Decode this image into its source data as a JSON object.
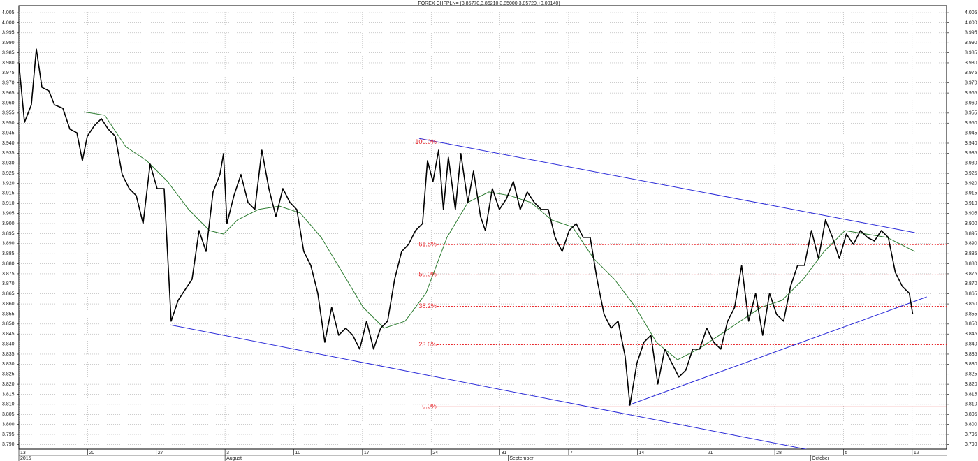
{
  "chart_data": {
    "type": "line",
    "title": "FOREX CHFPLN= (3.85770,3.86210,3.85000,3.85720,+0.00140)",
    "xlim": [
      0,
      67.5
    ],
    "ylim": [
      3.7877,
      4.0085
    ],
    "grid": true,
    "xticks": [
      {
        "value": 0,
        "label": "13"
      },
      {
        "value": 5,
        "label": "20"
      },
      {
        "value": 10,
        "label": "27"
      },
      {
        "value": 15,
        "label": "3"
      },
      {
        "value": 20,
        "label": "10"
      },
      {
        "value": 25,
        "label": "17"
      },
      {
        "value": 30,
        "label": "24"
      },
      {
        "value": 35,
        "label": "31"
      },
      {
        "value": 40,
        "label": "7"
      },
      {
        "value": 45,
        "label": "14"
      },
      {
        "value": 50,
        "label": "21"
      },
      {
        "value": 55,
        "label": "28"
      },
      {
        "value": 60,
        "label": "5"
      },
      {
        "value": 65,
        "label": "12"
      }
    ],
    "xticks2": [
      {
        "value": 0,
        "label": "2015"
      },
      {
        "value": 15,
        "label": "August"
      },
      {
        "value": 35.6,
        "label": "September"
      },
      {
        "value": 57.6,
        "label": "October"
      }
    ],
    "yticks": [
      {
        "value": 3.79,
        "label": "3.790"
      },
      {
        "value": 3.795,
        "label": "3.795"
      },
      {
        "value": 3.8,
        "label": "3.800"
      },
      {
        "value": 3.805,
        "label": "3.805"
      },
      {
        "value": 3.81,
        "label": "3.810"
      },
      {
        "value": 3.815,
        "label": "3.815"
      },
      {
        "value": 3.82,
        "label": "3.820"
      },
      {
        "value": 3.825,
        "label": "3.825"
      },
      {
        "value": 3.83,
        "label": "3.830"
      },
      {
        "value": 3.835,
        "label": "3.835"
      },
      {
        "value": 3.84,
        "label": "3.840"
      },
      {
        "value": 3.845,
        "label": "3.845"
      },
      {
        "value": 3.85,
        "label": "3.850"
      },
      {
        "value": 3.855,
        "label": "3.855"
      },
      {
        "value": 3.86,
        "label": "3.860"
      },
      {
        "value": 3.865,
        "label": "3.865"
      },
      {
        "value": 3.87,
        "label": "3.870"
      },
      {
        "value": 3.875,
        "label": "3.875"
      },
      {
        "value": 3.88,
        "label": "3.880"
      },
      {
        "value": 3.885,
        "label": "3.885"
      },
      {
        "value": 3.89,
        "label": "3.890"
      },
      {
        "value": 3.895,
        "label": "3.895"
      },
      {
        "value": 3.9,
        "label": "3.900"
      },
      {
        "value": 3.905,
        "label": "3.905"
      },
      {
        "value": 3.91,
        "label": "3.910"
      },
      {
        "value": 3.915,
        "label": "3.915"
      },
      {
        "value": 3.92,
        "label": "3.920"
      },
      {
        "value": 3.925,
        "label": "3.925"
      },
      {
        "value": 3.93,
        "label": "3.930"
      },
      {
        "value": 3.935,
        "label": "3.935"
      },
      {
        "value": 3.94,
        "label": "3.940"
      },
      {
        "value": 3.945,
        "label": "3.945"
      },
      {
        "value": 3.95,
        "label": "3.950"
      },
      {
        "value": 3.955,
        "label": "3.955"
      },
      {
        "value": 3.96,
        "label": "3.960"
      },
      {
        "value": 3.965,
        "label": "3.965"
      },
      {
        "value": 3.97,
        "label": "3.970"
      },
      {
        "value": 3.975,
        "label": "3.975"
      },
      {
        "value": 3.98,
        "label": "3.980"
      },
      {
        "value": 3.985,
        "label": "3.985"
      },
      {
        "value": 3.99,
        "label": "3.990"
      },
      {
        "value": 3.995,
        "label": "3.995"
      },
      {
        "value": 4.0,
        "label": "4.000"
      },
      {
        "value": 4.005,
        "label": "4.005"
      }
    ],
    "series": [
      {
        "color": "#000000",
        "width": 1.6,
        "x": [
          0,
          0.41,
          0.91,
          1.27,
          1.68,
          2.18,
          2.59,
          3.2,
          3.71,
          4.22,
          4.62,
          4.98,
          5.49,
          6,
          6.5,
          7.01,
          7.52,
          8.03,
          8.54,
          9.04,
          9.55,
          10.06,
          10.57,
          11.08,
          11.59,
          12.09,
          12.6,
          13.11,
          13.62,
          14.13,
          14.63,
          14.89,
          15.14,
          15.65,
          16.16,
          16.67,
          17.17,
          17.68,
          18.19,
          18.7,
          19.21,
          19.72,
          20.22,
          20.73,
          21.24,
          21.75,
          22.26,
          22.76,
          23.27,
          23.78,
          24.29,
          24.8,
          25.3,
          25.81,
          26.32,
          26.83,
          27.34,
          27.85,
          28.35,
          28.86,
          29.37,
          29.73,
          30.13,
          30.54,
          30.89,
          31.25,
          31.76,
          32.16,
          32.67,
          33.08,
          33.59,
          33.94,
          34.45,
          34.96,
          35.47,
          35.98,
          36.48,
          36.99,
          37.5,
          38.01,
          38.52,
          39.02,
          39.53,
          40.04,
          40.55,
          41.06,
          41.57,
          42.07,
          42.58,
          43.09,
          43.6,
          44.11,
          44.46,
          44.97,
          45.48,
          45.99,
          46.49,
          47,
          47.51,
          48.02,
          48.53,
          49.03,
          49.54,
          50.05,
          50.56,
          51.07,
          51.57,
          52.08,
          52.59,
          53.1,
          53.61,
          54.12,
          54.62,
          55.13,
          55.64,
          56.15,
          56.66,
          57.16,
          57.67,
          58.18,
          58.69,
          59.2,
          59.7,
          60.21,
          60.72,
          61.23,
          61.74,
          62.25,
          62.75,
          63.26,
          63.77,
          64.28,
          64.79,
          65.04
        ],
        "values": [
          3.98,
          3.9504,
          3.9591,
          3.9869,
          3.9678,
          3.9661,
          3.9591,
          3.9574,
          3.947,
          3.9452,
          3.9313,
          3.9435,
          3.9487,
          3.9522,
          3.947,
          3.9435,
          3.9244,
          3.9174,
          3.9139,
          3.9,
          3.9296,
          3.9174,
          3.9174,
          3.8514,
          3.8618,
          3.867,
          3.8722,
          3.8965,
          3.8861,
          3.9157,
          3.9244,
          3.9348,
          3.9,
          3.9139,
          3.9244,
          3.9105,
          3.907,
          3.9365,
          3.9174,
          3.9035,
          3.9174,
          3.9105,
          3.907,
          3.8861,
          3.8792,
          3.8653,
          3.8409,
          3.8583,
          3.8444,
          3.8479,
          3.8444,
          3.8375,
          3.8514,
          3.8375,
          3.8479,
          3.8514,
          3.8722,
          3.8861,
          3.8896,
          3.8965,
          3.9,
          3.9313,
          3.9209,
          3.9365,
          3.907,
          3.933,
          3.907,
          3.9348,
          3.9105,
          3.9261,
          3.9035,
          3.8965,
          3.9174,
          3.907,
          3.9122,
          3.9209,
          3.907,
          3.9157,
          3.9105,
          3.907,
          3.907,
          3.8931,
          3.8861,
          3.8965,
          3.9,
          3.8931,
          3.8931,
          3.8722,
          3.8548,
          3.8479,
          3.8514,
          3.834,
          3.8096,
          3.8305,
          3.8409,
          3.8444,
          3.8201,
          3.8375,
          3.8305,
          3.8236,
          3.827,
          3.8375,
          3.8375,
          3.8479,
          3.8409,
          3.8375,
          3.8514,
          3.8583,
          3.8792,
          3.8514,
          3.8653,
          3.8444,
          3.8653,
          3.8548,
          3.8514,
          3.8687,
          3.8792,
          3.8792,
          3.8965,
          3.8826,
          3.9018,
          3.8931,
          3.8826,
          3.8948,
          3.8896,
          3.8965,
          3.8931,
          3.8913,
          3.8965,
          3.8931,
          3.8757,
          3.8687,
          3.8653,
          3.8548
        ]
      },
      {
        "color": "#2e7d32",
        "width": 1,
        "x": [
          4.73,
          6.25,
          7.77,
          9.3,
          10.82,
          12.35,
          13.87,
          14.89,
          15.9,
          17.43,
          18.95,
          20.48,
          22,
          23.53,
          25.05,
          26.57,
          28.1,
          29.62,
          31.15,
          32.67,
          34.2,
          35.72,
          37.25,
          38.77,
          40.29,
          41.82,
          43.34,
          44.87,
          46.39,
          47.92,
          49.44,
          50.97,
          52.49,
          54.01,
          55.54,
          57.06,
          58.59,
          60.11,
          61.64,
          63.16,
          64.18,
          65.19
        ],
        "values": [
          3.9556,
          3.9539,
          3.9383,
          3.9313,
          3.9209,
          3.907,
          3.8965,
          3.8948,
          3.9018,
          3.907,
          3.9087,
          3.9052,
          3.8931,
          3.8757,
          3.8583,
          3.8479,
          3.8514,
          3.8653,
          3.8931,
          3.9105,
          3.9157,
          3.9139,
          3.9105,
          3.9018,
          3.8983,
          3.8826,
          3.8722,
          3.8583,
          3.8409,
          3.8322,
          3.8375,
          3.8444,
          3.8514,
          3.8583,
          3.8618,
          3.8722,
          3.8861,
          3.8965,
          3.8948,
          3.8931,
          3.8896,
          3.8861
        ]
      }
    ],
    "trendlines": {
      "color": "#2b2bd9",
      "lines": [
        {
          "x": [
            29.12,
            65.19
          ],
          "values": [
            3.9424,
            3.8955
          ]
        },
        {
          "x": [
            10.98,
            61.64
          ],
          "values": [
            3.8496,
            3.7818
          ]
        },
        {
          "x": [
            44.36,
            66.06
          ],
          "values": [
            3.8096,
            3.8635
          ]
        }
      ]
    },
    "fib": {
      "color": "#e8262b",
      "start": 30.44,
      "levels": [
        {
          "label": "100.0%",
          "value": 3.9405,
          "dashed": false
        },
        {
          "label": "61.8%",
          "value": 3.8895,
          "dashed": true
        },
        {
          "label": "50.0%",
          "value": 3.8745,
          "dashed": true
        },
        {
          "label": "38.2%",
          "value": 3.8588,
          "dashed": true
        },
        {
          "label": "23.6%",
          "value": 3.8397,
          "dashed": true
        },
        {
          "label": "0.0%",
          "value": 3.8088,
          "dashed": false
        }
      ]
    }
  }
}
